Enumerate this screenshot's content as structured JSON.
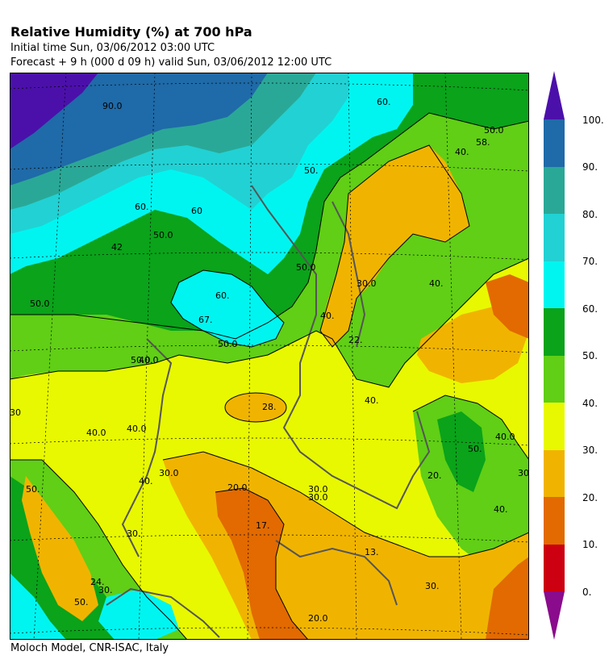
{
  "header": {
    "title": "Relative Humidity (%) at 700 hPa",
    "initial_time": "Initial time  Sun, 03/06/2012  03:00 UTC",
    "forecast": "Forecast  +   9 h  (000 d 09 h)  valid Sun, 03/06/2012 12:00 UTC"
  },
  "footer": {
    "credit": "Moloch Model, CNR-ISAC, Italy"
  },
  "colorbar": {
    "labels": [
      "100.",
      "90.",
      "80.",
      "70.",
      "60.",
      "50.",
      "40.",
      "30.",
      "20.",
      "10.",
      "0."
    ],
    "colors": {
      "above_100": "#4b10aa",
      "90_100": "#1f6aa8",
      "80_90": "#2aa897",
      "70_80": "#22d1d3",
      "60_70": "#00f5f0",
      "50_60": "#0aa31a",
      "40_50": "#60cf15",
      "30_40": "#e8f800",
      "20_30": "#f0b400",
      "10_20": "#e26a00",
      "0_10": "#cc0010",
      "below_0": "#8a0b8c"
    }
  },
  "contour_labels": [
    "90.0",
    "50.0",
    "58.",
    "40.",
    "60.",
    "50.",
    "60.",
    "40.",
    "42",
    "50.0",
    "50.0",
    "60.",
    "67.",
    "60",
    "30.0",
    "40.",
    "22.",
    "50.0",
    "50.0",
    "30",
    "50.0",
    "40.0",
    "28.",
    "40.0",
    "40.",
    "40.0",
    "40.",
    "30.0",
    "20.0",
    "30.0",
    "17.",
    "50.",
    "20.",
    "50.",
    "40.0",
    "30.",
    "24.",
    "30.",
    "50.",
    "20.0",
    "30.0",
    "30.",
    "13.",
    "30.",
    "40."
  ]
}
